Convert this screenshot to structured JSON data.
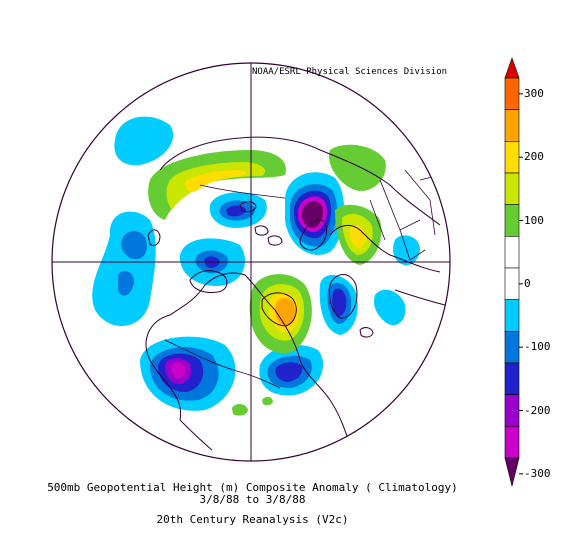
{
  "credit": "NOAA/ESRL Physical Sciences Division",
  "caption": {
    "line1": "500mb Geopotential Height (m) Composite Anomaly ( Climatology)",
    "line2": "3/8/88  to 3/8/88",
    "line3": "20th Century Reanalysis (V2c)"
  },
  "colorbar": {
    "labels": [
      "300",
      "200",
      "100",
      "0",
      "-100",
      "-200",
      "-300"
    ],
    "colors": [
      "#dd0000",
      "#ff6600",
      "#ffa500",
      "#ffdd00",
      "#c8e600",
      "#66cc33",
      "#ffffff",
      "#ffffff",
      "#00ccff",
      "#0077dd",
      "#2222cc",
      "#9900cc",
      "#cc00cc",
      "#660066"
    ]
  },
  "map": {
    "projection": "north-polar-stereographic",
    "field": "500mb geopotential height anomaly",
    "units": "m",
    "features": [
      "coastlines",
      "country-borders",
      "meridians",
      "equator-circle"
    ]
  }
}
